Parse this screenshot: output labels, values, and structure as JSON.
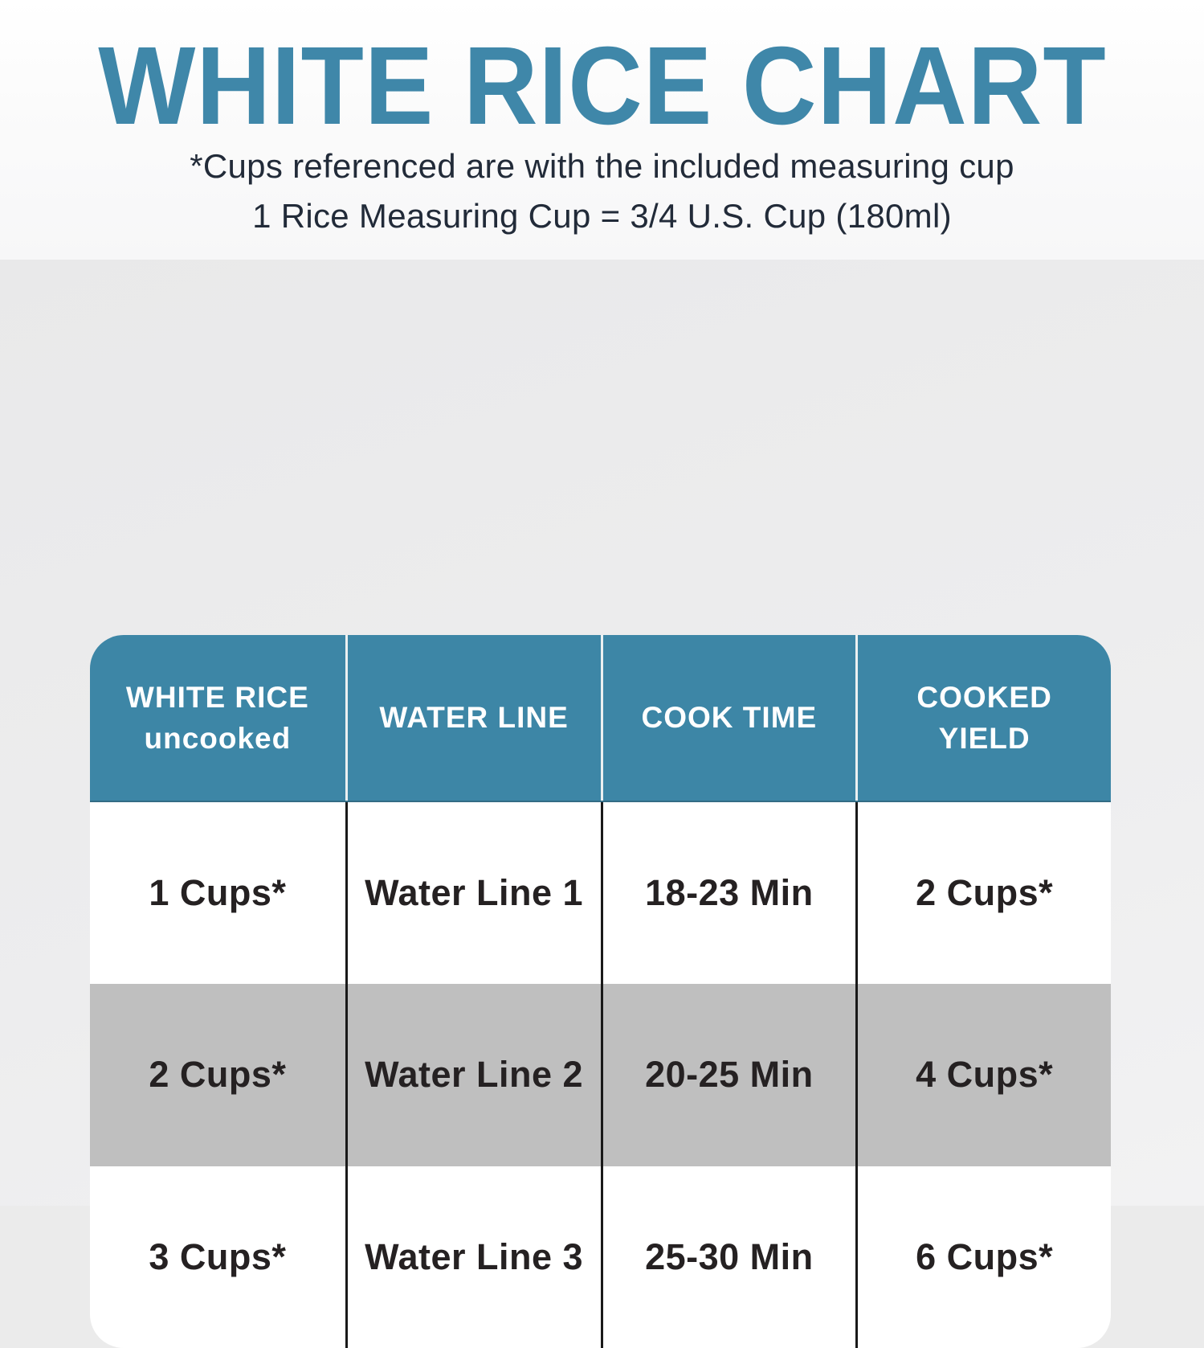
{
  "header": {
    "title": "WHITE RICE CHART",
    "subtitle_line1": "*Cups referenced are with the included measuring cup",
    "subtitle_line2": "1 Rice Measuring Cup = 3/4 U.S. Cup (180ml)"
  },
  "table": {
    "header_lines": [
      [
        "WHITE RICE",
        "uncooked"
      ],
      [
        "WATER LINE"
      ],
      [
        "COOK TIME"
      ],
      [
        "COOKED",
        "YIELD"
      ]
    ]
  },
  "chart_data": {
    "type": "table",
    "title": "WHITE RICE CHART",
    "notes": [
      "*Cups referenced are with the included measuring cup",
      "1 Rice Measuring Cup = 3/4 U.S. Cup (180ml)"
    ],
    "columns": [
      "WHITE RICE uncooked",
      "WATER LINE",
      "COOK TIME",
      "COOKED YIELD"
    ],
    "rows": [
      [
        "1 Cups*",
        "Water Line 1",
        "18-23 Min",
        "2 Cups*"
      ],
      [
        "2 Cups*",
        "Water Line 2",
        "20-25 Min",
        "4 Cups*"
      ],
      [
        "3 Cups*",
        "Water Line 3",
        "25-30 Min",
        "6 Cups*"
      ]
    ],
    "row_striping": [
      "white",
      "gray",
      "white"
    ]
  },
  "colors": {
    "accent_teal": "#3d86a6",
    "title_teal": "#3f87a9",
    "subtitle_navy": "#222b39",
    "cell_text": "#252122",
    "gray_row": "#bfbfbf",
    "top_band_bg": "#fbfbfb",
    "lower_band_bg": "#ebebeb",
    "body_divider": "#191919",
    "header_divider": "#ecf0f1"
  }
}
